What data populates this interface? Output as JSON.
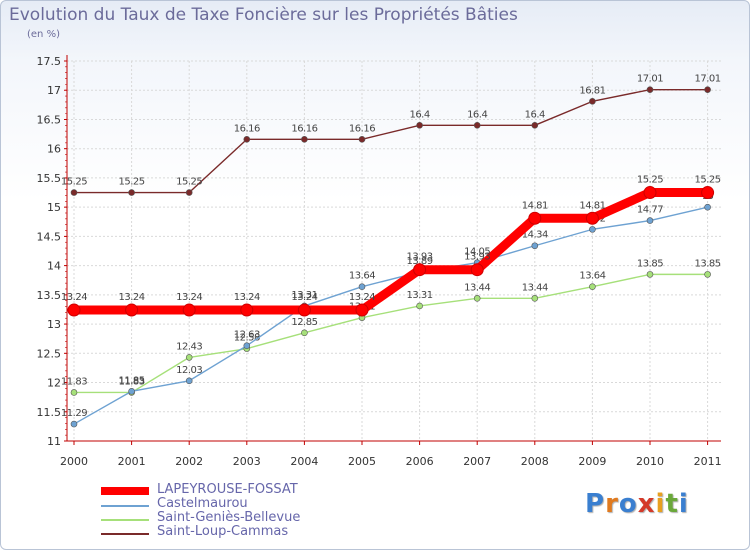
{
  "title": "Evolution du Taux de Taxe Foncière sur les Propriétés Bâties",
  "subtitle": "(en %)",
  "logo": {
    "letters": [
      "P",
      "r",
      "o",
      "x",
      "i",
      "t",
      "i"
    ],
    "colors": [
      "#3a7fd0",
      "#e07a1f",
      "#3a7fd0",
      "#d43a2a",
      "#e8a020",
      "#6aa83a",
      "#3a7fd0"
    ]
  },
  "chart_data": {
    "type": "line",
    "title": "Evolution du Taux de Taxe Foncière sur les Propriétés Bâties",
    "ylabel": "(en %)",
    "xlabel": "",
    "ylim": [
      11,
      17.5
    ],
    "yticks": [
      "11",
      "11.5",
      "12",
      "12.5",
      "13",
      "13.5",
      "14",
      "14.5",
      "15",
      "15.5",
      "16",
      "16.5",
      "17",
      "17.5"
    ],
    "categories": [
      "2000",
      "2001",
      "2002",
      "2003",
      "2004",
      "2005",
      "2006",
      "2007",
      "2008",
      "2009",
      "2010",
      "2011"
    ],
    "series": [
      {
        "name": "LAPEYROUSE-FOSSAT",
        "color": "#ff0000",
        "emphasis": true,
        "values": [
          13.24,
          13.24,
          13.24,
          13.24,
          13.24,
          13.24,
          13.93,
          13.93,
          14.81,
          14.81,
          15.25,
          15.25
        ],
        "labels": [
          "13.24",
          "13.24",
          "13.24",
          "13.24",
          "13.24",
          "13.24",
          "13.93",
          "13.93",
          "14.81",
          "14.81",
          "15.25",
          "15.25"
        ]
      },
      {
        "name": "Castelmaurou",
        "color": "#6ea2d2",
        "values": [
          11.29,
          11.85,
          12.03,
          12.63,
          13.31,
          13.64,
          13.89,
          14.05,
          14.34,
          14.62,
          14.77,
          15.0
        ],
        "labels": [
          "11.29",
          "11.85",
          "12.03",
          "12.63",
          "13.31",
          "13.64",
          "13.89",
          "14.05",
          "14.34",
          "14.62",
          "14.77",
          "15"
        ]
      },
      {
        "name": "Saint-Geniès-Bellevue",
        "color": "#a6e07a",
        "values": [
          11.83,
          11.83,
          12.43,
          12.58,
          12.85,
          13.11,
          13.31,
          13.44,
          13.44,
          13.64,
          13.85,
          13.85
        ],
        "labels": [
          "11.83",
          "11.83",
          "12.43",
          "12.58",
          "12.85",
          "13.11",
          "13.31",
          "13.44",
          "13.44",
          "13.64",
          "13.85",
          "13.85"
        ]
      },
      {
        "name": "Saint-Loup-Cammas",
        "color": "#7a2a2a",
        "values": [
          15.25,
          15.25,
          15.25,
          16.16,
          16.16,
          16.16,
          16.4,
          16.4,
          16.4,
          16.81,
          17.01,
          17.01
        ],
        "labels": [
          "15.25",
          "15.25",
          "15.25",
          "16.16",
          "16.16",
          "16.16",
          "16.4",
          "16.4",
          "16.4",
          "16.81",
          "17.01",
          "17.01"
        ]
      }
    ],
    "legend_position": "bottom-left"
  }
}
